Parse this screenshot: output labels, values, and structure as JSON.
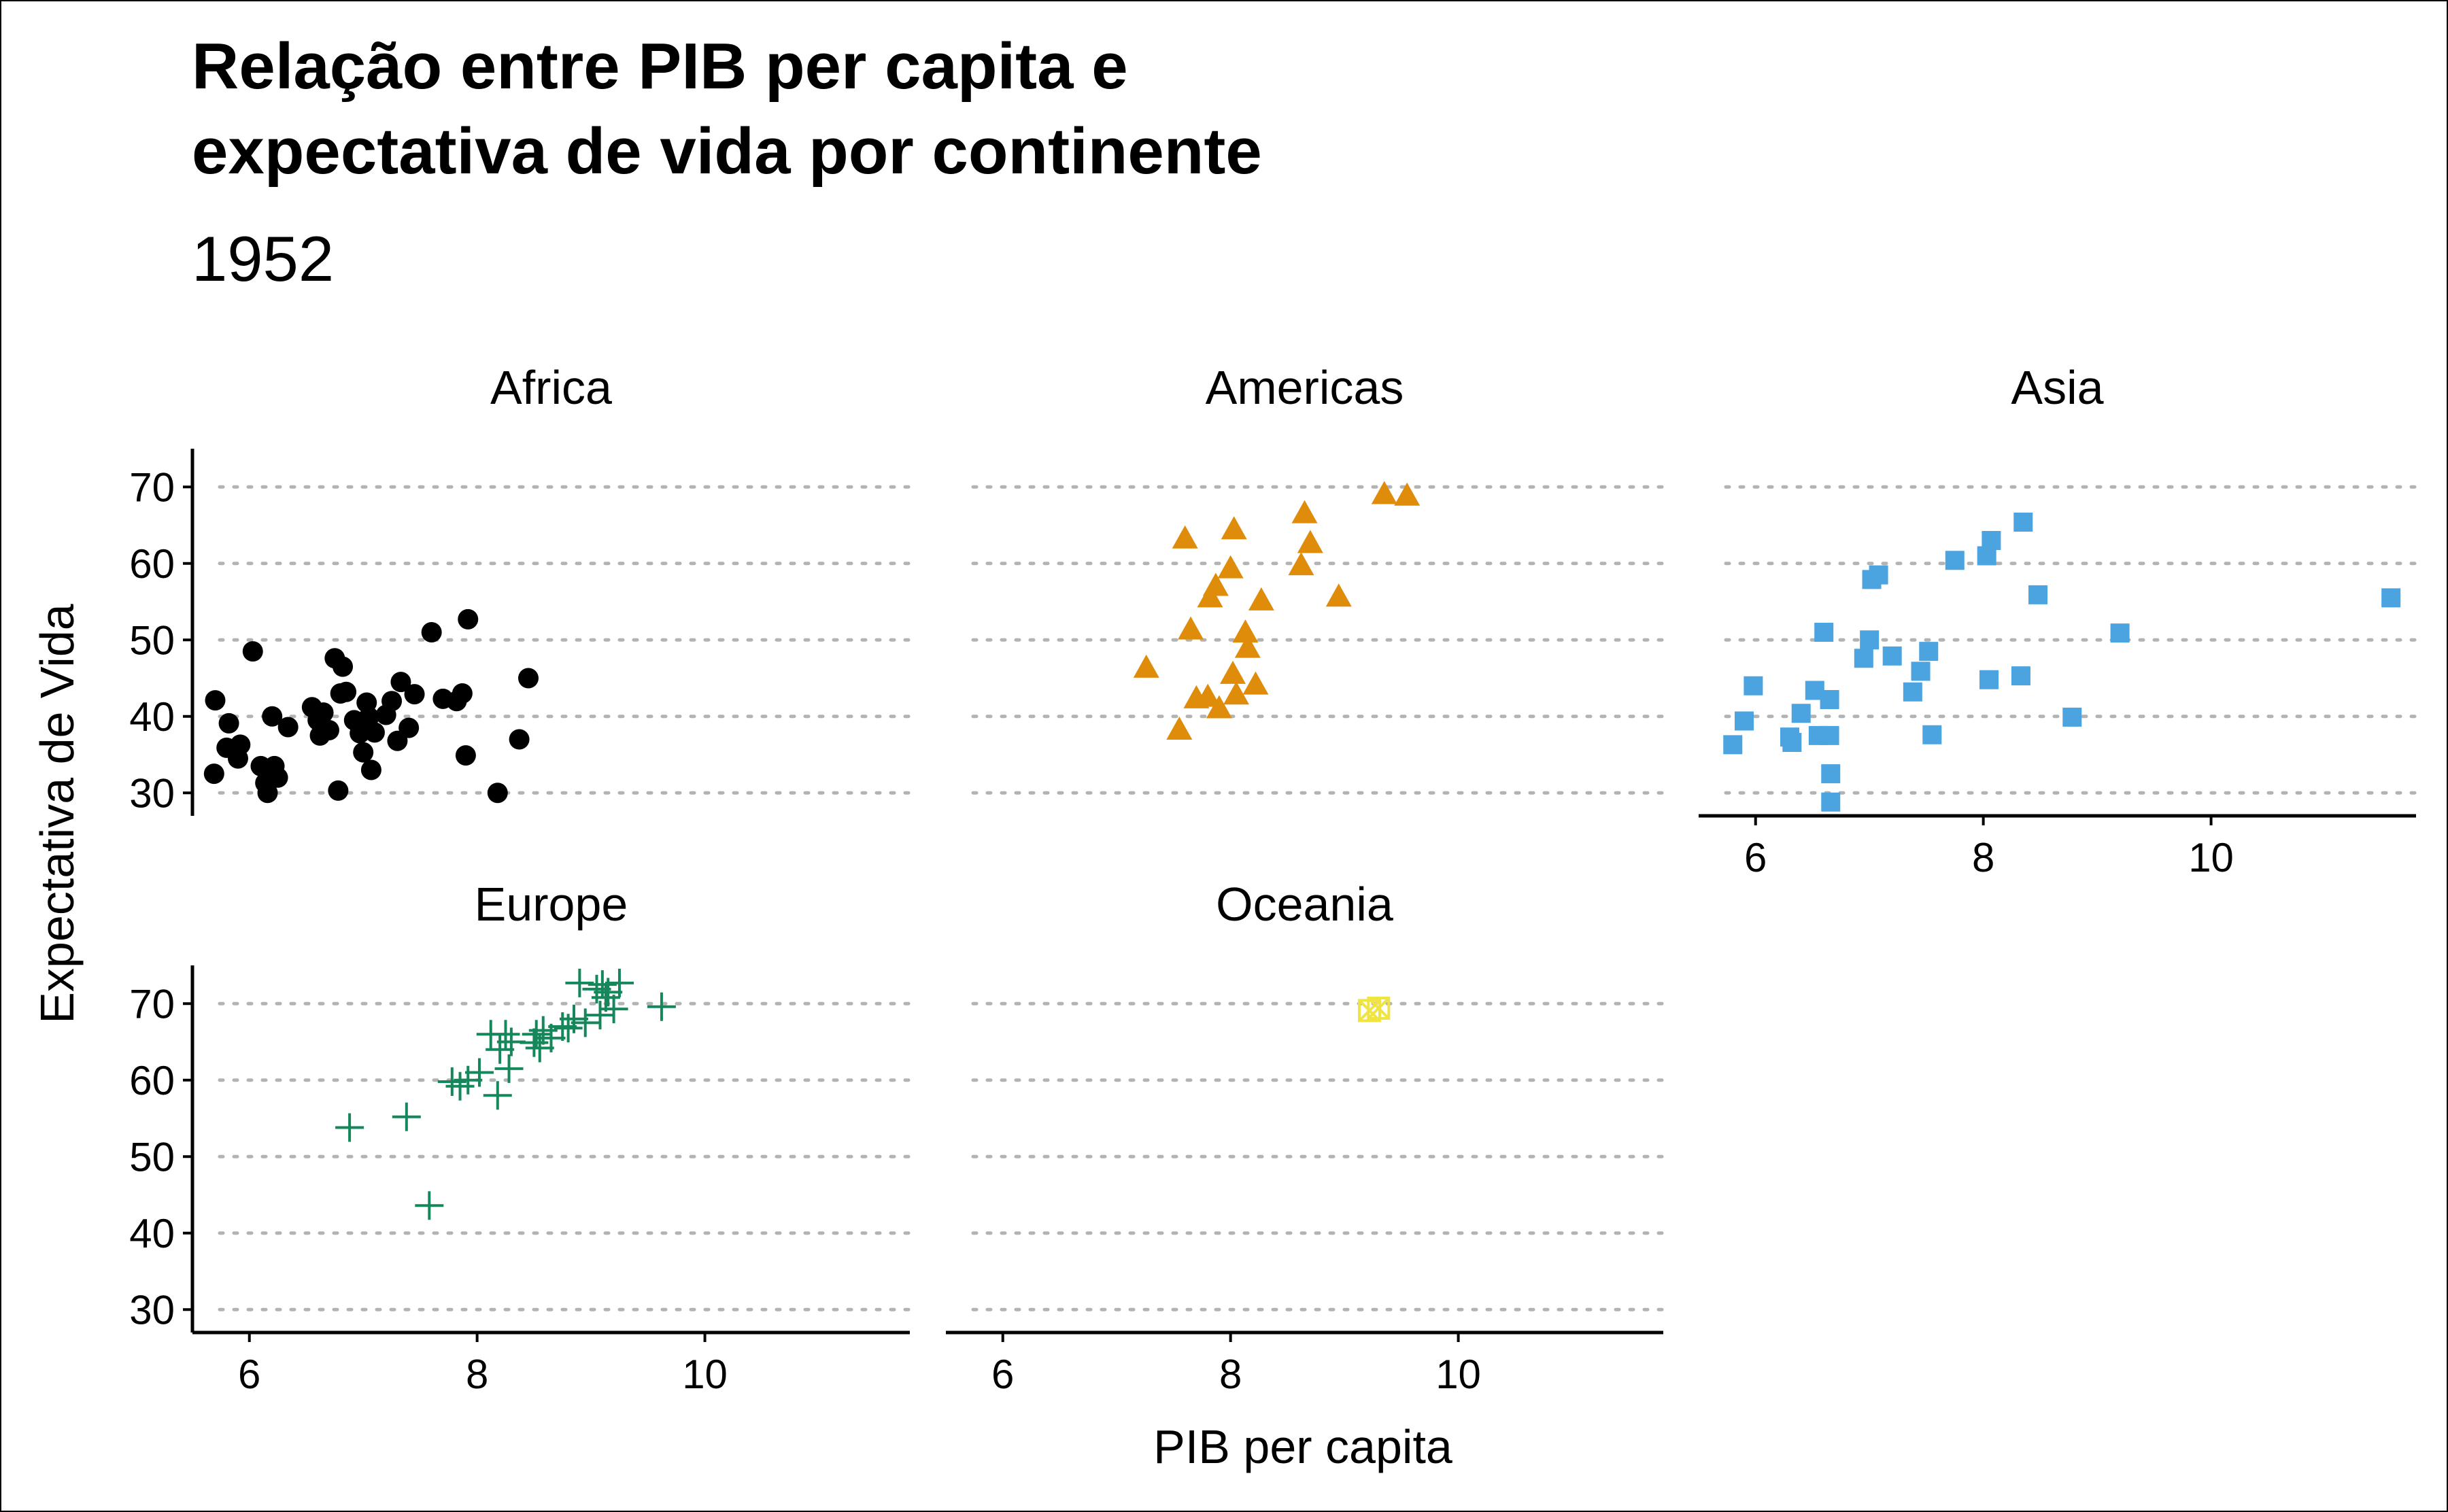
{
  "chart_data": {
    "type": "scatter",
    "title": "Relação entre PIB per capita e expectativa de vida por continente",
    "title_lines": [
      "Relação entre PIB per capita e",
      "expectativa de vida por continente"
    ],
    "subtitle": "1952",
    "xlabel": "PIB per capita",
    "ylabel": "Expectativa de Vida",
    "xlim": [
      5.5,
      11.8
    ],
    "ylim": [
      27,
      75
    ],
    "x_ticks": [
      6,
      8,
      10
    ],
    "y_ticks": [
      30,
      40,
      50,
      60,
      70
    ],
    "grid": "horizontal dotted",
    "legend": "none",
    "facets": [
      {
        "name": "Africa",
        "shape": "circle",
        "color": "#000000",
        "points": [
          [
            5.7,
            42.1
          ],
          [
            5.69,
            32.5
          ],
          [
            5.8,
            35.9
          ],
          [
            5.82,
            39.1
          ],
          [
            5.9,
            34.5
          ],
          [
            5.92,
            36.3
          ],
          [
            6.03,
            48.5
          ],
          [
            6.1,
            33.5
          ],
          [
            6.14,
            31.3
          ],
          [
            6.16,
            30.0
          ],
          [
            6.2,
            40.0
          ],
          [
            6.22,
            33.5
          ],
          [
            6.25,
            32.0
          ],
          [
            6.34,
            38.6
          ],
          [
            6.55,
            41.2
          ],
          [
            6.6,
            39.5
          ],
          [
            6.62,
            37.5
          ],
          [
            6.65,
            40.5
          ],
          [
            6.7,
            38.2
          ],
          [
            6.75,
            47.6
          ],
          [
            6.78,
            30.3
          ],
          [
            6.8,
            43.0
          ],
          [
            6.82,
            46.5
          ],
          [
            6.85,
            43.2
          ],
          [
            6.92,
            39.5
          ],
          [
            6.97,
            37.8
          ],
          [
            7.0,
            35.3
          ],
          [
            7.03,
            41.8
          ],
          [
            7.05,
            39.9
          ],
          [
            7.07,
            33.0
          ],
          [
            7.1,
            37.9
          ],
          [
            7.2,
            40.2
          ],
          [
            7.25,
            42.0
          ],
          [
            7.3,
            36.8
          ],
          [
            7.33,
            44.5
          ],
          [
            7.4,
            38.5
          ],
          [
            7.45,
            42.9
          ],
          [
            7.6,
            51.0
          ],
          [
            7.7,
            42.3
          ],
          [
            7.82,
            42.0
          ],
          [
            7.87,
            43.0
          ],
          [
            7.9,
            34.9
          ],
          [
            7.92,
            52.7
          ],
          [
            8.18,
            30.0
          ],
          [
            8.37,
            37.0
          ],
          [
            8.45,
            45.0
          ]
        ]
      },
      {
        "name": "Americas",
        "shape": "triangle",
        "color": "#E08C0B",
        "points": [
          [
            7.26,
            46.3
          ],
          [
            7.55,
            38.2
          ],
          [
            7.6,
            63.2
          ],
          [
            7.65,
            51.3
          ],
          [
            7.7,
            42.3
          ],
          [
            7.8,
            42.5
          ],
          [
            7.82,
            55.5
          ],
          [
            7.87,
            57.0
          ],
          [
            7.9,
            41.0
          ],
          [
            8.0,
            59.3
          ],
          [
            8.02,
            45.5
          ],
          [
            8.03,
            64.4
          ],
          [
            8.05,
            42.8
          ],
          [
            8.13,
            50.9
          ],
          [
            8.15,
            48.9
          ],
          [
            8.22,
            44.1
          ],
          [
            8.27,
            55.1
          ],
          [
            8.62,
            59.7
          ],
          [
            8.65,
            66.5
          ],
          [
            8.7,
            62.6
          ],
          [
            8.95,
            55.6
          ],
          [
            9.35,
            69.0
          ],
          [
            9.55,
            68.8
          ]
        ]
      },
      {
        "name": "Asia",
        "shape": "square",
        "color": "#4BA3E0",
        "points": [
          [
            5.8,
            36.3
          ],
          [
            5.9,
            39.4
          ],
          [
            5.98,
            44.0
          ],
          [
            6.3,
            37.3
          ],
          [
            6.32,
            36.6
          ],
          [
            6.4,
            40.4
          ],
          [
            6.52,
            43.4
          ],
          [
            6.55,
            37.5
          ],
          [
            6.6,
            51.0
          ],
          [
            6.65,
            42.2
          ],
          [
            6.65,
            37.5
          ],
          [
            6.66,
            32.5
          ],
          [
            6.66,
            28.8
          ],
          [
            6.95,
            47.6
          ],
          [
            7.0,
            50.0
          ],
          [
            7.02,
            57.9
          ],
          [
            7.08,
            58.5
          ],
          [
            7.2,
            47.9
          ],
          [
            7.38,
            43.2
          ],
          [
            7.45,
            45.9
          ],
          [
            7.52,
            48.5
          ],
          [
            7.55,
            37.6
          ],
          [
            7.75,
            60.4
          ],
          [
            8.03,
            61.0
          ],
          [
            8.05,
            44.8
          ],
          [
            8.07,
            63.0
          ],
          [
            8.33,
            45.3
          ],
          [
            8.35,
            65.4
          ],
          [
            8.48,
            55.9
          ],
          [
            8.78,
            39.9
          ],
          [
            9.2,
            50.9
          ],
          [
            11.58,
            55.5
          ]
        ]
      },
      {
        "name": "Europe",
        "shape": "plus",
        "color": "#15875A",
        "points": [
          [
            6.88,
            53.8
          ],
          [
            7.38,
            55.2
          ],
          [
            7.58,
            43.6
          ],
          [
            7.78,
            59.8
          ],
          [
            7.85,
            59.2
          ],
          [
            7.92,
            60.0
          ],
          [
            8.02,
            61.0
          ],
          [
            8.12,
            66.0
          ],
          [
            8.18,
            58.0
          ],
          [
            8.2,
            64.0
          ],
          [
            8.25,
            66.0
          ],
          [
            8.28,
            61.5
          ],
          [
            8.3,
            65.0
          ],
          [
            8.5,
            64.9
          ],
          [
            8.52,
            66.0
          ],
          [
            8.55,
            64.2
          ],
          [
            8.58,
            66.5
          ],
          [
            8.65,
            65.5
          ],
          [
            8.75,
            67.0
          ],
          [
            8.8,
            66.8
          ],
          [
            8.85,
            68.0
          ],
          [
            8.9,
            72.7
          ],
          [
            8.95,
            67.5
          ],
          [
            9.05,
            71.9
          ],
          [
            9.08,
            68.5
          ],
          [
            9.1,
            72.5
          ],
          [
            9.13,
            70.8
          ],
          [
            9.15,
            71.5
          ],
          [
            9.2,
            69.3
          ],
          [
            9.25,
            72.7
          ],
          [
            9.62,
            69.6
          ]
        ]
      },
      {
        "name": "Oceania",
        "shape": "square-x",
        "color": "#F0E442",
        "points": [
          [
            9.22,
            69.1
          ],
          [
            9.3,
            69.4
          ]
        ]
      }
    ]
  }
}
